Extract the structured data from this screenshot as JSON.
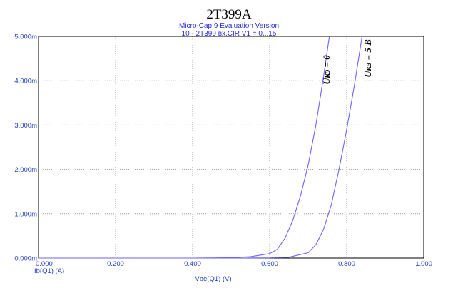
{
  "chart_data": {
    "type": "line",
    "title": "2T399A",
    "subtitle_lines": [
      "Micro-Cap 9 Evaluation Version",
      "10 - 2T399 вх.CIR V1 = 0...15"
    ],
    "xlabel": "Vbe(Q1) (V)",
    "ylabel": "Ib(Q1) (A)",
    "xlim": [
      0,
      1.0
    ],
    "ylim": [
      0,
      0.005
    ],
    "x_ticks": [
      0,
      0.2,
      0.4,
      0.6,
      0.8,
      1.0
    ],
    "x_tick_labels": [
      "0.000",
      "0.200",
      "0.400",
      "0.600",
      "0.800",
      "1.000"
    ],
    "y_ticks": [
      0,
      0.001,
      0.002,
      0.003,
      0.004,
      0.005
    ],
    "y_tick_labels": [
      "0.000m",
      "1.000m",
      "2.000m",
      "3.000m",
      "4.000m",
      "5.000m"
    ],
    "grid": true,
    "series": [
      {
        "name": "Uкэ = 0",
        "x": [
          0.0,
          0.4,
          0.5,
          0.55,
          0.6,
          0.62,
          0.64,
          0.66,
          0.68,
          0.7,
          0.72,
          0.74,
          0.755
        ],
        "y": [
          0.0,
          0.0,
          1e-05,
          3e-05,
          0.0001,
          0.0002,
          0.00045,
          0.00085,
          0.0014,
          0.0021,
          0.003,
          0.0041,
          0.005
        ]
      },
      {
        "name": "Uкэ = 5 В",
        "x": [
          0.0,
          0.5,
          0.6,
          0.65,
          0.7,
          0.72,
          0.74,
          0.76,
          0.78,
          0.8,
          0.82,
          0.84
        ],
        "y": [
          0.0,
          0.0,
          5e-06,
          2e-05,
          0.00012,
          0.0003,
          0.00065,
          0.0012,
          0.002,
          0.0029,
          0.0039,
          0.005
        ]
      }
    ],
    "curve_labels": [
      "Uкэ = 0",
      "Uкэ = 5 В"
    ]
  },
  "colors": {
    "curve": "#6b63ff",
    "axis_text": "#1f3fbf",
    "subtitle": "#2b2bd0",
    "grid": "#9a9a9a"
  }
}
